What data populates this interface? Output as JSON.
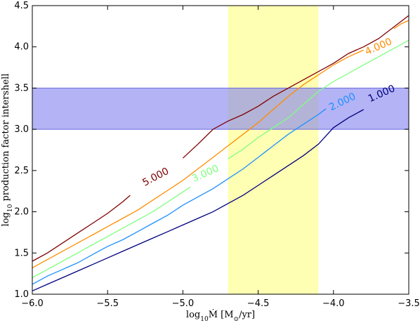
{
  "chart_data": {
    "type": "line",
    "subtype": "contour",
    "title": "",
    "xlabel_parts": {
      "prefix": "log",
      "sub": "10",
      "var": "Ṁ [M",
      "sun": "⊙",
      "suffix": "/yr]"
    },
    "ylabel_parts": {
      "prefix": "log",
      "sub": "10",
      "rest": " production factor intershell"
    },
    "xlim": [
      -6.0,
      -3.5
    ],
    "ylim": [
      1.0,
      4.5
    ],
    "x_ticks": [
      -6.0,
      -5.5,
      -5.0,
      -4.5,
      -4.0,
      -3.5
    ],
    "x_tick_labels": [
      "−6.0",
      "−5.5",
      "−5.0",
      "−4.5",
      "−4.0",
      "−3.5"
    ],
    "y_ticks": [
      1.0,
      1.5,
      2.0,
      2.5,
      3.0,
      3.5,
      4.0,
      4.5
    ],
    "y_tick_labels": [
      "1.0",
      "1.5",
      "2.0",
      "2.5",
      "3.0",
      "3.5",
      "4.0",
      "4.5"
    ],
    "grid": false,
    "bands": [
      {
        "orientation": "vertical",
        "range": [
          -4.7,
          -4.1
        ],
        "color": "#ffff99"
      },
      {
        "orientation": "horizontal",
        "range": [
          3.0,
          3.5
        ],
        "color": "#8080ee"
      }
    ],
    "series": [
      {
        "level": "1.000",
        "color": "#00007f",
        "x": [
          -6.0,
          -5.9,
          -5.8,
          -5.7,
          -5.6,
          -5.5,
          -5.4,
          -5.3,
          -5.2,
          -5.1,
          -5.0,
          -4.9,
          -4.8,
          -4.7,
          -4.6,
          -4.5,
          -4.4,
          -4.3,
          -4.2,
          -4.1,
          -4.0,
          -3.9,
          -3.8
        ],
        "y": [
          1.04,
          1.12,
          1.2,
          1.28,
          1.36,
          1.44,
          1.52,
          1.6,
          1.68,
          1.76,
          1.84,
          1.92,
          2.0,
          2.1,
          2.2,
          2.32,
          2.44,
          2.56,
          2.68,
          2.82,
          3.02,
          3.14,
          3.24
        ]
      },
      {
        "level": "2.000",
        "color": "#1e90ff",
        "x": [
          -6.0,
          -5.9,
          -5.8,
          -5.7,
          -5.6,
          -5.5,
          -5.4,
          -5.3,
          -5.2,
          -5.1,
          -5.0,
          -4.9,
          -4.8,
          -4.7,
          -4.6,
          -4.5,
          -4.4,
          -4.3,
          -4.2,
          -4.1,
          -4.05
        ],
        "y": [
          1.12,
          1.22,
          1.3,
          1.38,
          1.48,
          1.58,
          1.66,
          1.76,
          1.86,
          1.96,
          2.08,
          2.18,
          2.28,
          2.4,
          2.52,
          2.66,
          2.8,
          2.94,
          3.06,
          3.18,
          3.25
        ]
      },
      {
        "level": "3.000",
        "color": "#7fff7f",
        "x": [
          -6.0,
          -5.9,
          -5.8,
          -5.7,
          -5.6,
          -5.5,
          -5.4,
          -5.3,
          -5.2,
          -5.1,
          -5.0,
          -4.95
        ],
        "y": [
          1.2,
          1.3,
          1.4,
          1.5,
          1.6,
          1.7,
          1.8,
          1.9,
          2.0,
          2.12,
          2.24,
          2.3
        ]
      },
      {
        "level": "3.000",
        "color": "#7fff7f",
        "x": [
          -4.7,
          -4.6,
          -4.5,
          -4.4,
          -4.3,
          -4.2,
          -4.1,
          -4.0,
          -3.9,
          -3.8,
          -3.7,
          -3.6,
          -3.5
        ],
        "y": [
          2.64,
          2.76,
          2.9,
          3.02,
          3.14,
          3.3,
          3.46,
          3.58,
          3.68,
          3.78,
          3.88,
          3.98,
          4.08
        ]
      },
      {
        "level": "4.000",
        "color": "#ff8c00",
        "x": [
          -6.0,
          -5.9,
          -5.8,
          -5.7,
          -5.6,
          -5.5,
          -5.4,
          -5.3,
          -5.2,
          -5.1,
          -5.0,
          -4.9,
          -4.8,
          -4.7,
          -4.6,
          -4.5,
          -4.4,
          -4.3,
          -4.2,
          -4.1,
          -4.0,
          -3.9,
          -3.8
        ],
        "y": [
          1.32,
          1.42,
          1.52,
          1.62,
          1.72,
          1.82,
          1.92,
          2.02,
          2.14,
          2.26,
          2.38,
          2.52,
          2.66,
          2.8,
          2.94,
          3.08,
          3.24,
          3.4,
          3.54,
          3.66,
          3.78,
          3.88,
          3.96
        ]
      },
      {
        "level": "4.000",
        "color": "#ff8c00",
        "x": [
          -3.6,
          -3.55,
          -3.5
        ],
        "y": [
          4.22,
          4.28,
          4.32
        ]
      },
      {
        "level": "5.000",
        "color": "#7f0000",
        "x": [
          -6.0,
          -5.9,
          -5.8,
          -5.7,
          -5.6,
          -5.5,
          -5.4,
          -5.35
        ],
        "y": [
          1.4,
          1.5,
          1.62,
          1.74,
          1.86,
          1.98,
          2.12,
          2.2
        ]
      },
      {
        "level": "5.000",
        "color": "#7f0000",
        "x": [
          -5.0,
          -4.9,
          -4.8,
          -4.7,
          -4.6,
          -4.5,
          -4.4,
          -4.3,
          -4.2,
          -4.1,
          -4.0,
          -3.9,
          -3.8,
          -3.7,
          -3.6,
          -3.5
        ],
        "y": [
          2.65,
          2.82,
          3.0,
          3.1,
          3.18,
          3.28,
          3.4,
          3.5,
          3.6,
          3.7,
          3.8,
          3.92,
          4.0,
          4.1,
          4.24,
          4.38
        ]
      }
    ],
    "contour_labels": [
      {
        "text": "5.000",
        "x": -5.18,
        "y": 2.42,
        "angle": -28,
        "color": "#7f0000"
      },
      {
        "text": "3.000",
        "x": -4.85,
        "y": 2.46,
        "angle": -24,
        "color": "#7fff7f"
      },
      {
        "text": "4.000",
        "x": -3.7,
        "y": 4.0,
        "angle": -24,
        "color": "#ff8c00"
      },
      {
        "text": "2.000",
        "x": -3.94,
        "y": 3.33,
        "angle": -26,
        "color": "#1e90ff"
      },
      {
        "text": "1.000",
        "x": -3.68,
        "y": 3.43,
        "angle": -24,
        "color": "#00007f"
      }
    ]
  }
}
